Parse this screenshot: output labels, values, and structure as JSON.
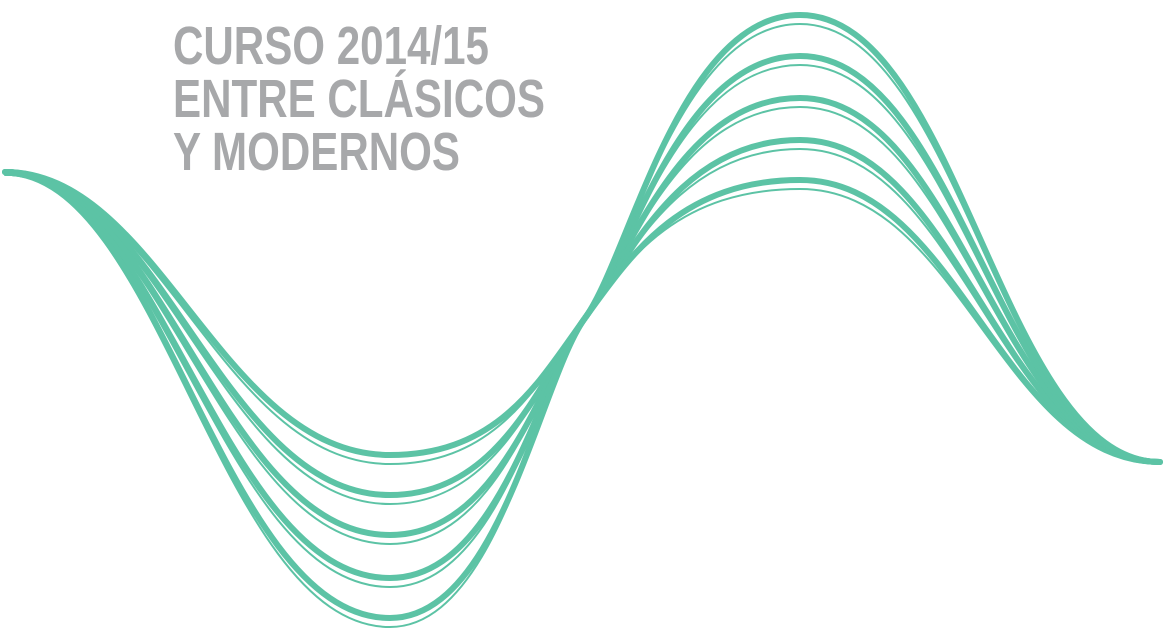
{
  "title_lines": [
    "CURSO 2014/15",
    "ENTRE CLÁSICOS",
    "Y MODERNOS"
  ]
}
